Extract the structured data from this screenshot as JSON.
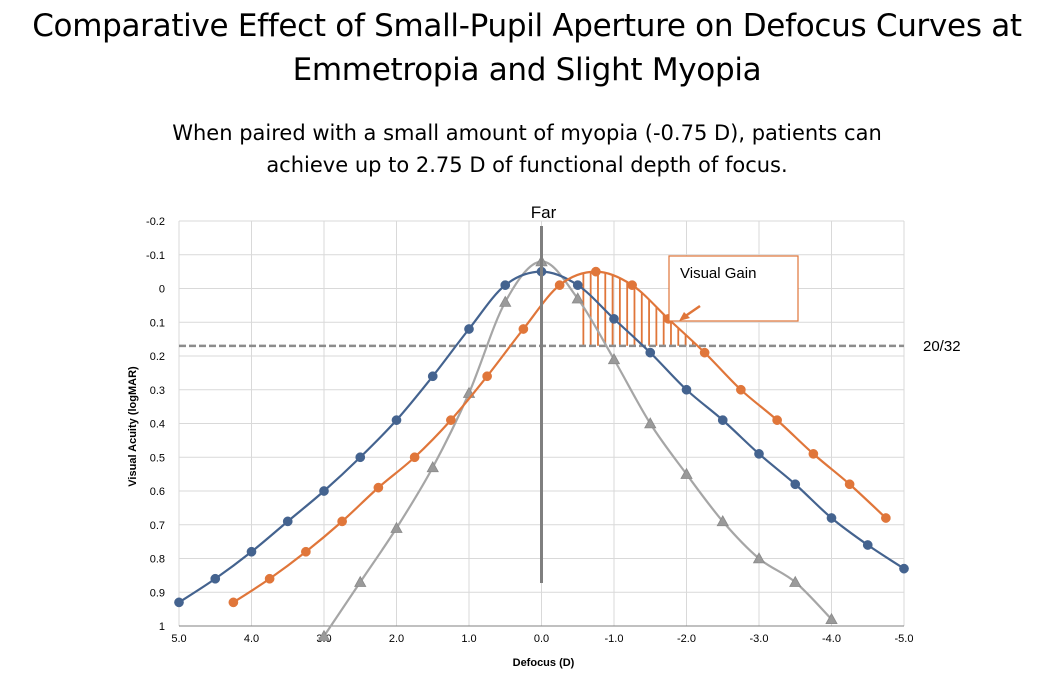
{
  "title_line1": "Comparative Effect of Small-Pupil Aperture on Defocus Curves at",
  "title_line2": "Emmetropia and Slight Myopia",
  "subtitle_line1": "When paired with a small amount of myopia (-0.75 D), patients can",
  "subtitle_line2": "achieve up to 2.75 D of functional depth of focus.",
  "colors": {
    "blue": "#44638f",
    "orange": "#e0763a",
    "gray": "#a6a6a6",
    "grid": "#d9d9d9",
    "ref": "#8c8c8c",
    "far": "#7f7f7f"
  },
  "chart_data": {
    "type": "line",
    "xlabel": "Defocus (D)",
    "ylabel": "Visual Acuity (logMAR)",
    "x_ticks": [
      "5.0",
      "4.0",
      "3.0",
      "2.0",
      "1.0",
      "0.0",
      "-1.0",
      "-2.0",
      "-3.0",
      "-4.0",
      "-5.0"
    ],
    "y_ticks": [
      "-0.2",
      "-0.1",
      "0",
      "0.1",
      "0.2",
      "0.3",
      "0.4",
      "0.5",
      "0.6",
      "0.7",
      "0.8",
      "0.9",
      "1"
    ],
    "xlim": [
      5.0,
      -5.0
    ],
    "ylim": [
      -0.2,
      1.0
    ],
    "y_inverted": true,
    "grid": true,
    "series": [
      {
        "color": "#44638f",
        "marker": "circle",
        "x": [
          5.0,
          4.5,
          4.0,
          3.5,
          3.0,
          2.5,
          2.0,
          1.5,
          1.0,
          0.5,
          0.0,
          -0.5,
          -1.0,
          -1.5,
          -2.0,
          -2.5,
          -3.0,
          -3.5,
          -4.0,
          -4.5,
          -5.0
        ],
        "y": [
          0.93,
          0.86,
          0.78,
          0.69,
          0.6,
          0.5,
          0.39,
          0.26,
          0.12,
          -0.01,
          -0.05,
          -0.01,
          0.09,
          0.19,
          0.3,
          0.39,
          0.49,
          0.58,
          0.68,
          0.76,
          0.83
        ]
      },
      {
        "color": "#e0763a",
        "marker": "circle",
        "x": [
          4.25,
          3.75,
          3.25,
          2.75,
          2.25,
          1.75,
          1.25,
          0.75,
          0.25,
          -0.25,
          -0.75,
          -1.25,
          -1.75,
          -2.25,
          -2.75,
          -3.25,
          -3.75,
          -4.25,
          -4.75
        ],
        "y": [
          0.93,
          0.86,
          0.78,
          0.69,
          0.59,
          0.5,
          0.39,
          0.26,
          0.12,
          -0.01,
          -0.05,
          -0.01,
          0.09,
          0.19,
          0.3,
          0.39,
          0.49,
          0.58,
          0.68
        ]
      },
      {
        "color": "#a6a6a6",
        "marker": "triangle",
        "x": [
          3.0,
          2.5,
          2.0,
          1.5,
          1.0,
          0.5,
          0.0,
          -0.5,
          -1.0,
          -1.5,
          -2.0,
          -2.5,
          -3.0,
          -3.5,
          -4.0
        ],
        "y": [
          1.03,
          0.87,
          0.71,
          0.53,
          0.31,
          0.04,
          -0.08,
          0.03,
          0.21,
          0.4,
          0.55,
          0.69,
          0.8,
          0.87,
          0.98
        ]
      }
    ],
    "reference_line": {
      "y": 0.17,
      "label": "20/32"
    },
    "vertical_marker": {
      "x": 0.0,
      "label": "Far"
    },
    "annotations": [
      "Visual Gain"
    ],
    "visual_gain_range": [
      -0.55,
      -2.1
    ]
  }
}
